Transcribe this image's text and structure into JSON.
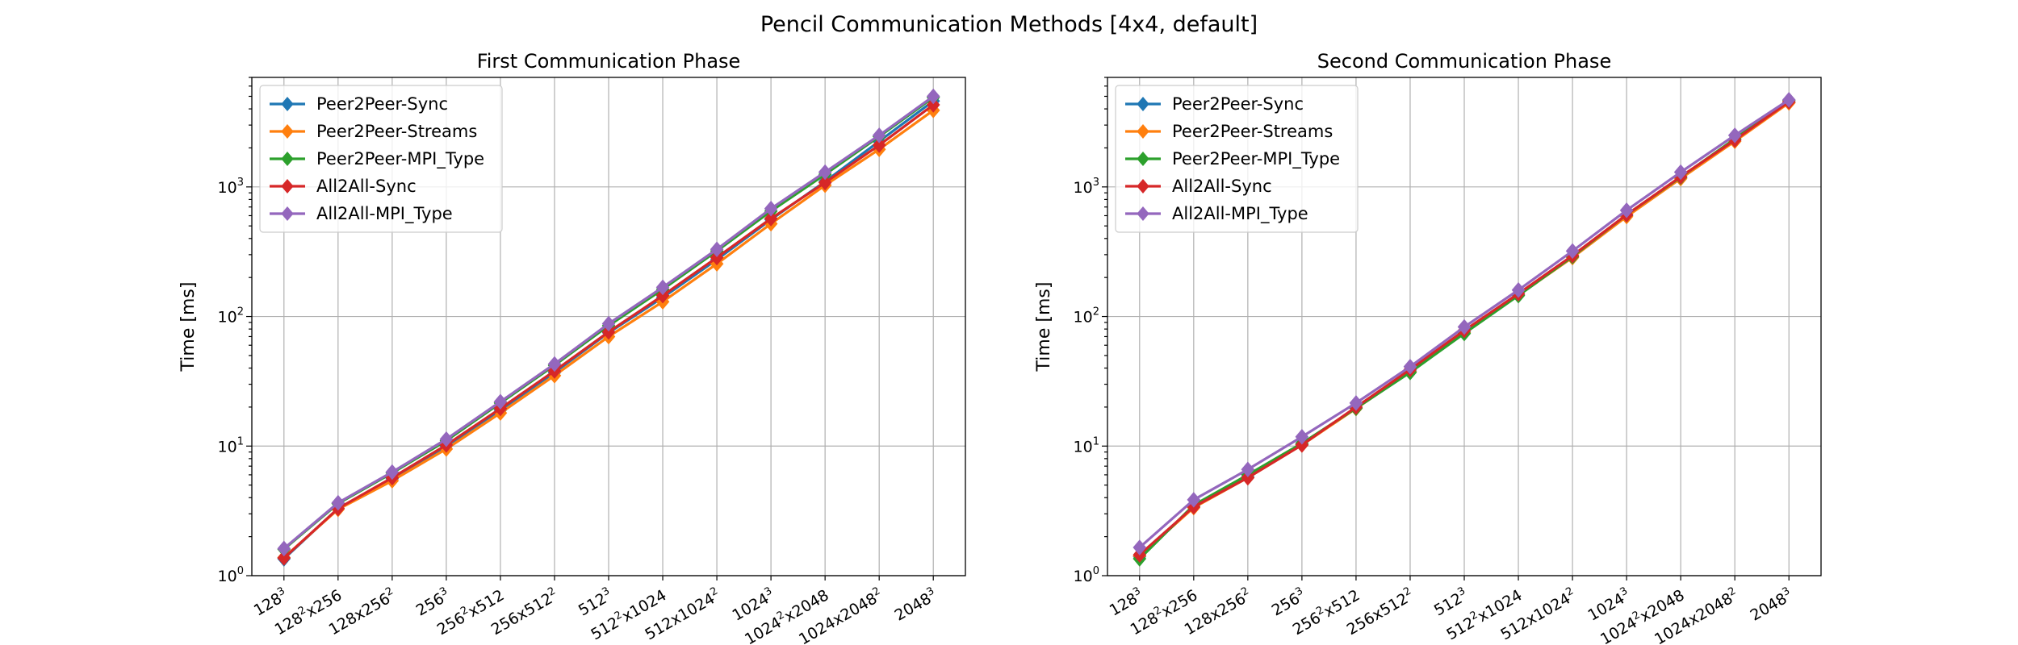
{
  "figure": {
    "title": "Pencil Communication Methods [4x4, default]"
  },
  "chart_data": [
    {
      "type": "line",
      "title": "First Communication Phase",
      "xlabel": "",
      "ylabel": "Time [ms]",
      "yscale": "log",
      "ylim": [
        1,
        7000
      ],
      "grid": true,
      "legend": "top-left",
      "categories": [
        {
          "base": "128",
          "sup": "3",
          "rest": ""
        },
        {
          "base": "128",
          "sup": "2",
          "rest": "x256"
        },
        {
          "base": "128x256",
          "sup": "2",
          "rest": ""
        },
        {
          "base": "256",
          "sup": "3",
          "rest": ""
        },
        {
          "base": "256",
          "sup": "2",
          "rest": "x512"
        },
        {
          "base": "256x512",
          "sup": "2",
          "rest": ""
        },
        {
          "base": "512",
          "sup": "3",
          "rest": ""
        },
        {
          "base": "512",
          "sup": "2",
          "rest": "x1024"
        },
        {
          "base": "512x1024",
          "sup": "2",
          "rest": ""
        },
        {
          "base": "1024",
          "sup": "3",
          "rest": ""
        },
        {
          "base": "1024",
          "sup": "2",
          "rest": "x2048"
        },
        {
          "base": "1024x2048",
          "sup": "2",
          "rest": ""
        },
        {
          "base": "2048",
          "sup": "3",
          "rest": ""
        }
      ],
      "series": [
        {
          "name": "Peer2Peer-Sync",
          "color": "#1f77b4",
          "values": [
            1.35,
            3.3,
            5.6,
            10.0,
            19.0,
            37,
            75,
            140,
            275,
            560,
            1100,
            2250,
            4600
          ]
        },
        {
          "name": "Peer2Peer-Streams",
          "color": "#ff7f0e",
          "values": [
            1.38,
            3.25,
            5.4,
            9.5,
            18.0,
            35,
            70,
            130,
            255,
            520,
            1030,
            1950,
            3900
          ]
        },
        {
          "name": "Peer2Peer-MPI_Type",
          "color": "#2ca02c",
          "values": [
            1.6,
            3.6,
            6.2,
            11.0,
            21.5,
            42,
            85,
            162,
            320,
            650,
            1250,
            2450,
            4900
          ]
        },
        {
          "name": "All2All-Sync",
          "color": "#d62728",
          "values": [
            1.37,
            3.3,
            5.7,
            10.2,
            19.5,
            38,
            76,
            145,
            285,
            570,
            1080,
            2100,
            4300
          ]
        },
        {
          "name": "All2All-MPI_Type",
          "color": "#9467bd",
          "values": [
            1.62,
            3.65,
            6.3,
            11.3,
            22.0,
            43,
            88,
            168,
            330,
            680,
            1300,
            2500,
            5000
          ]
        }
      ]
    },
    {
      "type": "line",
      "title": "Second Communication Phase",
      "xlabel": "",
      "ylabel": "Time [ms]",
      "yscale": "log",
      "ylim": [
        1,
        7000
      ],
      "grid": true,
      "legend": "top-left",
      "categories": [
        {
          "base": "128",
          "sup": "3",
          "rest": ""
        },
        {
          "base": "128",
          "sup": "2",
          "rest": "x256"
        },
        {
          "base": "128x256",
          "sup": "2",
          "rest": ""
        },
        {
          "base": "256",
          "sup": "3",
          "rest": ""
        },
        {
          "base": "256",
          "sup": "2",
          "rest": "x512"
        },
        {
          "base": "256x512",
          "sup": "2",
          "rest": ""
        },
        {
          "base": "512",
          "sup": "3",
          "rest": ""
        },
        {
          "base": "512",
          "sup": "2",
          "rest": "x1024"
        },
        {
          "base": "512x1024",
          "sup": "2",
          "rest": ""
        },
        {
          "base": "1024",
          "sup": "3",
          "rest": ""
        },
        {
          "base": "1024",
          "sup": "2",
          "rest": "x2048"
        },
        {
          "base": "1024x2048",
          "sup": "2",
          "rest": ""
        },
        {
          "base": "2048",
          "sup": "3",
          "rest": ""
        }
      ],
      "series": [
        {
          "name": "Peer2Peer-Sync",
          "color": "#1f77b4",
          "values": [
            1.4,
            3.4,
            5.8,
            10.3,
            19.8,
            38,
            76,
            148,
            290,
            600,
            1180,
            2300,
            4500
          ]
        },
        {
          "name": "Peer2Peer-Streams",
          "color": "#ff7f0e",
          "values": [
            1.42,
            3.35,
            5.7,
            10.2,
            19.5,
            37.5,
            75,
            146,
            285,
            590,
            1160,
            2250,
            4450
          ]
        },
        {
          "name": "Peer2Peer-MPI_Type",
          "color": "#2ca02c",
          "values": [
            1.35,
            3.5,
            6.0,
            10.5,
            19.6,
            37,
            74,
            145,
            290,
            610,
            1190,
            2350,
            4650
          ]
        },
        {
          "name": "All2All-Sync",
          "color": "#d62728",
          "values": [
            1.45,
            3.4,
            5.7,
            10.2,
            20.0,
            39,
            78,
            150,
            295,
            610,
            1200,
            2300,
            4550
          ]
        },
        {
          "name": "All2All-MPI_Type",
          "color": "#9467bd",
          "values": [
            1.65,
            3.85,
            6.6,
            11.8,
            21.5,
            41,
            83,
            160,
            320,
            660,
            1300,
            2500,
            4700
          ]
        }
      ]
    }
  ]
}
